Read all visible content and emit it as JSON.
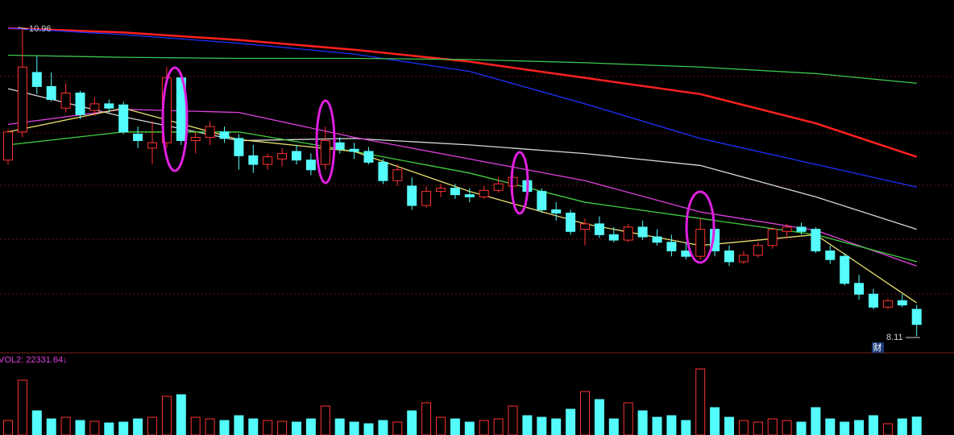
{
  "chart_data": {
    "type": "candlestick",
    "up_color": "#ff3232",
    "down_color": "#54fcfc",
    "ylim": [
      7.98,
      11.22
    ],
    "candles": [
      [
        9.74,
        10.02,
        9.7,
        10.0
      ],
      [
        10.0,
        10.96,
        9.95,
        10.6
      ],
      [
        10.55,
        10.7,
        10.35,
        10.42
      ],
      [
        10.42,
        10.55,
        10.28,
        10.3
      ],
      [
        10.22,
        10.45,
        10.18,
        10.36
      ],
      [
        10.36,
        10.38,
        10.12,
        10.16
      ],
      [
        10.2,
        10.32,
        10.15,
        10.26
      ],
      [
        10.26,
        10.3,
        10.18,
        10.22
      ],
      [
        10.25,
        10.28,
        9.98,
        10.0
      ],
      [
        9.98,
        10.05,
        9.85,
        9.92
      ],
      [
        9.85,
        10.1,
        9.7,
        9.9
      ],
      [
        9.9,
        10.6,
        9.85,
        10.5
      ],
      [
        10.5,
        10.55,
        9.88,
        9.92
      ],
      [
        9.92,
        10.0,
        9.8,
        9.95
      ],
      [
        9.95,
        10.1,
        9.88,
        10.05
      ],
      [
        10.0,
        10.05,
        9.9,
        9.94
      ],
      [
        9.94,
        9.98,
        9.65,
        9.78
      ],
      [
        9.78,
        9.88,
        9.62,
        9.7
      ],
      [
        9.7,
        9.8,
        9.65,
        9.77
      ],
      [
        9.75,
        9.85,
        9.68,
        9.8
      ],
      [
        9.82,
        9.88,
        9.7,
        9.74
      ],
      [
        9.74,
        9.8,
        9.6,
        9.65
      ],
      [
        9.7,
        10.05,
        9.65,
        9.92
      ],
      [
        9.9,
        9.95,
        9.8,
        9.84
      ],
      [
        9.84,
        9.9,
        9.75,
        9.82
      ],
      [
        9.82,
        9.86,
        9.7,
        9.72
      ],
      [
        9.72,
        9.75,
        9.52,
        9.55
      ],
      [
        9.55,
        9.7,
        9.5,
        9.65
      ],
      [
        9.5,
        9.58,
        9.28,
        9.32
      ],
      [
        9.32,
        9.5,
        9.3,
        9.45
      ],
      [
        9.45,
        9.52,
        9.4,
        9.48
      ],
      [
        9.48,
        9.52,
        9.38,
        9.42
      ],
      [
        9.42,
        9.48,
        9.35,
        9.4
      ],
      [
        9.4,
        9.5,
        9.38,
        9.46
      ],
      [
        9.46,
        9.58,
        9.44,
        9.52
      ],
      [
        9.5,
        9.72,
        9.45,
        9.58
      ],
      [
        9.55,
        9.6,
        9.4,
        9.45
      ],
      [
        9.45,
        9.48,
        9.25,
        9.28
      ],
      [
        9.28,
        9.35,
        9.18,
        9.25
      ],
      [
        9.25,
        9.28,
        9.05,
        9.08
      ],
      [
        9.1,
        9.2,
        8.95,
        9.15
      ],
      [
        9.15,
        9.22,
        9.02,
        9.05
      ],
      [
        9.05,
        9.12,
        8.98,
        9.0
      ],
      [
        9.0,
        9.15,
        8.98,
        9.12
      ],
      [
        9.12,
        9.18,
        9.0,
        9.03
      ],
      [
        9.03,
        9.1,
        8.95,
        8.98
      ],
      [
        8.98,
        9.05,
        8.85,
        8.9
      ],
      [
        8.9,
        8.98,
        8.82,
        8.85
      ],
      [
        8.85,
        9.2,
        8.82,
        9.1
      ],
      [
        9.1,
        9.12,
        8.85,
        8.9
      ],
      [
        8.9,
        8.95,
        8.76,
        8.8
      ],
      [
        8.8,
        8.9,
        8.78,
        8.86
      ],
      [
        8.86,
        8.98,
        8.84,
        8.95
      ],
      [
        8.95,
        9.12,
        8.92,
        9.1
      ],
      [
        9.08,
        9.15,
        9.02,
        9.12
      ],
      [
        9.12,
        9.16,
        9.05,
        9.08
      ],
      [
        9.1,
        9.12,
        8.88,
        8.9
      ],
      [
        8.9,
        8.95,
        8.78,
        8.82
      ],
      [
        8.85,
        8.88,
        8.58,
        8.6
      ],
      [
        8.6,
        8.68,
        8.45,
        8.5
      ],
      [
        8.5,
        8.55,
        8.36,
        8.38
      ],
      [
        8.38,
        8.46,
        8.36,
        8.44
      ],
      [
        8.44,
        8.5,
        8.38,
        8.4
      ],
      [
        8.36,
        8.4,
        8.11,
        8.22
      ]
    ],
    "series": [
      {
        "color": "#ff2020",
        "x": [
          0,
          8,
          16,
          24,
          32,
          40,
          48,
          56,
          63
        ],
        "values": [
          10.96,
          10.92,
          10.85,
          10.76,
          10.65,
          10.5,
          10.35,
          10.08,
          9.77
        ]
      },
      {
        "color": "#2030ff",
        "x": [
          0,
          8,
          16,
          24,
          32,
          40,
          48,
          56,
          63
        ],
        "values": [
          10.96,
          10.9,
          10.82,
          10.72,
          10.56,
          10.26,
          9.94,
          9.7,
          9.49
        ]
      },
      {
        "color": "#3cc850",
        "x": [
          0,
          8,
          16,
          24,
          32,
          40,
          48,
          56,
          63
        ],
        "values": [
          10.71,
          10.69,
          10.68,
          10.68,
          10.67,
          10.64,
          10.6,
          10.54,
          10.45
        ]
      },
      {
        "color": "#d8d8d8",
        "x": [
          0,
          8,
          16,
          24,
          32,
          40,
          48,
          56,
          63
        ],
        "values": [
          10.4,
          10.14,
          9.92,
          9.94,
          9.88,
          9.8,
          9.69,
          9.4,
          9.1
        ]
      },
      {
        "color": "#e040e0",
        "x": [
          0,
          8,
          16,
          24,
          32,
          40,
          48,
          56,
          63
        ],
        "values": [
          10.07,
          10.21,
          10.18,
          9.95,
          9.75,
          9.55,
          9.26,
          9.09,
          8.76
        ]
      },
      {
        "color": "#40d040",
        "x": [
          0,
          8,
          16,
          24,
          32,
          40,
          48,
          56,
          63
        ],
        "values": [
          9.88,
          10.0,
          10.0,
          9.82,
          9.62,
          9.35,
          9.2,
          9.05,
          8.8
        ]
      },
      {
        "color": "#e8e070",
        "x": [
          0,
          8,
          16,
          24,
          32,
          40,
          48,
          56,
          63
        ],
        "values": [
          10.0,
          10.22,
          9.93,
          9.82,
          9.45,
          9.15,
          8.95,
          9.05,
          8.42
        ]
      }
    ],
    "volume_label": "VOL2: 22331.64↓",
    "volume_ylim": [
      0,
      85000
    ],
    "volumes": [
      18000,
      68000,
      30000,
      20000,
      22000,
      18000,
      17000,
      15000,
      16000,
      20000,
      22000,
      48000,
      50000,
      22000,
      20000,
      18000,
      24000,
      20000,
      18000,
      17000,
      16000,
      20000,
      36000,
      20000,
      16000,
      14000,
      18000,
      16000,
      30000,
      40000,
      22000,
      20000,
      16000,
      18000,
      20000,
      36000,
      24000,
      22000,
      20000,
      32000,
      54000,
      44000,
      20000,
      40000,
      30000,
      22000,
      24000,
      18000,
      82000,
      34000,
      22000,
      18000,
      16000,
      20000,
      18000,
      16000,
      34000,
      20000,
      16000,
      18000,
      24000,
      14000,
      20000,
      22331.64
    ],
    "badge": "财"
  }
}
